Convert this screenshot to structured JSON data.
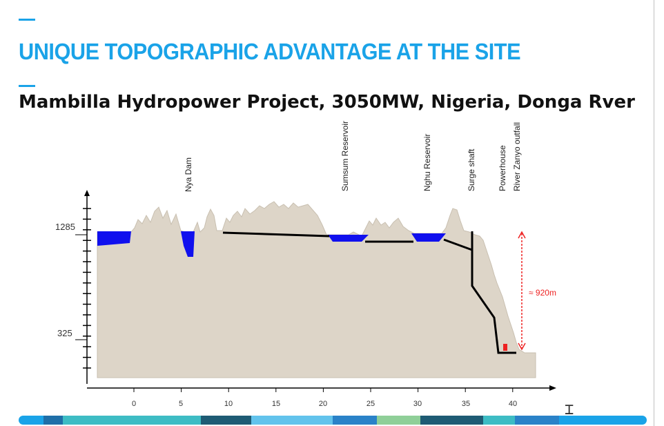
{
  "slide": {
    "title": "UNIQUE TOPOGRAPHIC ADVANTAGE AT THE SITE",
    "subtitle": "Mambilla Hydropower Project, 3050MW, Nigeria, Donga Rver",
    "accent_color": "#1aa3e8"
  },
  "diagram": {
    "features": [
      {
        "label": "Nya Dam",
        "x_km": 5.7
      },
      {
        "label": "Sumsum Reservoir",
        "x_km": 24.7
      },
      {
        "label": "Nghu Reservoir",
        "x_km": 33.3
      },
      {
        "label": "Surge shaft",
        "x_km": 37.7
      },
      {
        "label": "Powerhouse",
        "x_km": 41.2
      },
      {
        "label": "River Zanyo outfall",
        "x_km": 42.8
      }
    ],
    "x_ticks": [
      "0",
      "5",
      "10",
      "15",
      "20",
      "25",
      "30",
      "35",
      "40"
    ],
    "y_ticks": [
      "1285",
      "325"
    ],
    "head_label": "≈ 920m",
    "colors": {
      "ground": "#ddd5c8",
      "water": "#1010ee",
      "tunnel": "#000000",
      "head_marker": "#ee2222"
    }
  },
  "progress_segments": [
    {
      "color": "#1aa3e8",
      "fraction": 0.04
    },
    {
      "color": "#1f6fa8",
      "fraction": 0.03
    },
    {
      "color": "#3dbcc4",
      "fraction": 0.22
    },
    {
      "color": "#1e5b74",
      "fraction": 0.08
    },
    {
      "color": "#62c3ec",
      "fraction": 0.13
    },
    {
      "color": "#2a82c8",
      "fraction": 0.07
    },
    {
      "color": "#8fcf98",
      "fraction": 0.07
    },
    {
      "color": "#1e5b74",
      "fraction": 0.1
    },
    {
      "color": "#3dbcc4",
      "fraction": 0.05
    },
    {
      "color": "#2a82c8",
      "fraction": 0.07
    },
    {
      "color": "#1aa3e8",
      "fraction": 0.14
    }
  ],
  "cursor": {
    "icon": "text-cursor-icon"
  }
}
